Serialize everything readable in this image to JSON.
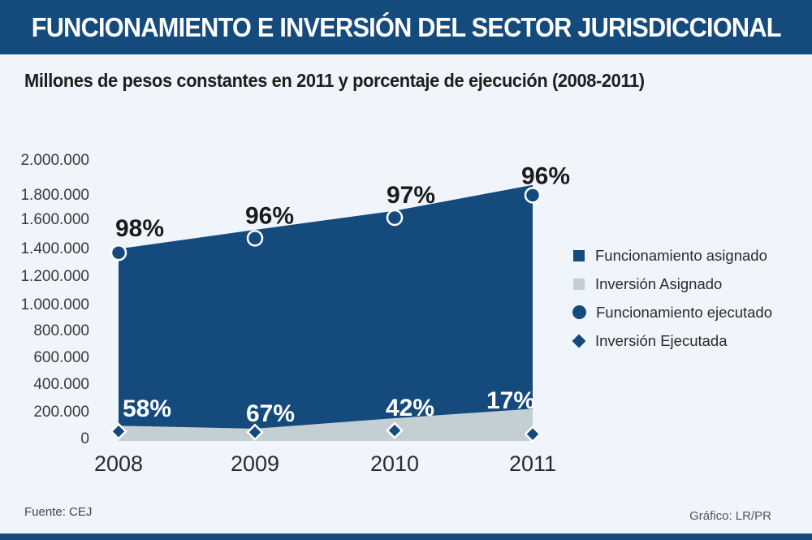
{
  "header": {
    "title": "FUNCIONAMIENTO E INVERSIÓN DEL SECTOR JURISDICCIONAL"
  },
  "subtitle": "Millones de pesos constantes en 2011 y porcentaje de ejecución (2008-2011)",
  "colors": {
    "header_bg": "#154a7c",
    "background": "#f0f5fb",
    "funcionamiento": "#154a7c",
    "inversion": "#c3cfd3",
    "marker_outline": "#ffffff"
  },
  "chart_data": {
    "type": "area",
    "title": "Millones de pesos constantes en 2011 y porcentaje de ejecución (2008-2011)",
    "xlabel": "",
    "ylabel": "",
    "categories": [
      "2008",
      "2009",
      "2010",
      "2011"
    ],
    "ylim": [
      0,
      2000000
    ],
    "yticks": [
      0,
      200000,
      400000,
      600000,
      800000,
      1000000,
      1200000,
      1400000,
      1600000,
      1800000,
      2000000
    ],
    "ytick_labels": [
      "0",
      "200.000",
      "400.000",
      "600.000",
      "800.000",
      "1.000.000",
      "1.200.000",
      "1.400.000",
      "1.600.000",
      "1.800.000",
      "2.000.000"
    ],
    "grid": false,
    "legend_position": "right",
    "series": [
      {
        "name": "Funcionamiento asignado",
        "kind": "area",
        "values": [
          1400000,
          1540000,
          1680000,
          1870000
        ]
      },
      {
        "name": "Inversión Asignado",
        "kind": "area",
        "values": [
          100000,
          78000,
          155000,
          225000
        ]
      },
      {
        "name": "Funcionamiento ejecutado",
        "kind": "marker-circle",
        "values": [
          1372000,
          1478000,
          1630000,
          1795000
        ],
        "labels": [
          "98%",
          "96%",
          "97%",
          "96%"
        ]
      },
      {
        "name": "Inversión Ejecutada",
        "kind": "marker-diamond",
        "values": [
          58000,
          52000,
          65000,
          38000
        ],
        "labels": [
          "58%",
          "67%",
          "42%",
          "17%"
        ]
      }
    ]
  },
  "legend": [
    {
      "label": "Funcionamiento asignado",
      "shape": "square",
      "color": "#154a7c"
    },
    {
      "label": "Inversión Asignado",
      "shape": "square",
      "color": "#c3cfd3"
    },
    {
      "label": "Funcionamiento ejecutado",
      "shape": "circle",
      "color": "#154a7c"
    },
    {
      "label": "Inversión Ejecutada",
      "shape": "diamond",
      "color": "#154a7c"
    }
  ],
  "footer": {
    "source": "Fuente: CEJ",
    "credit": "Gráfico: LR/PR"
  }
}
